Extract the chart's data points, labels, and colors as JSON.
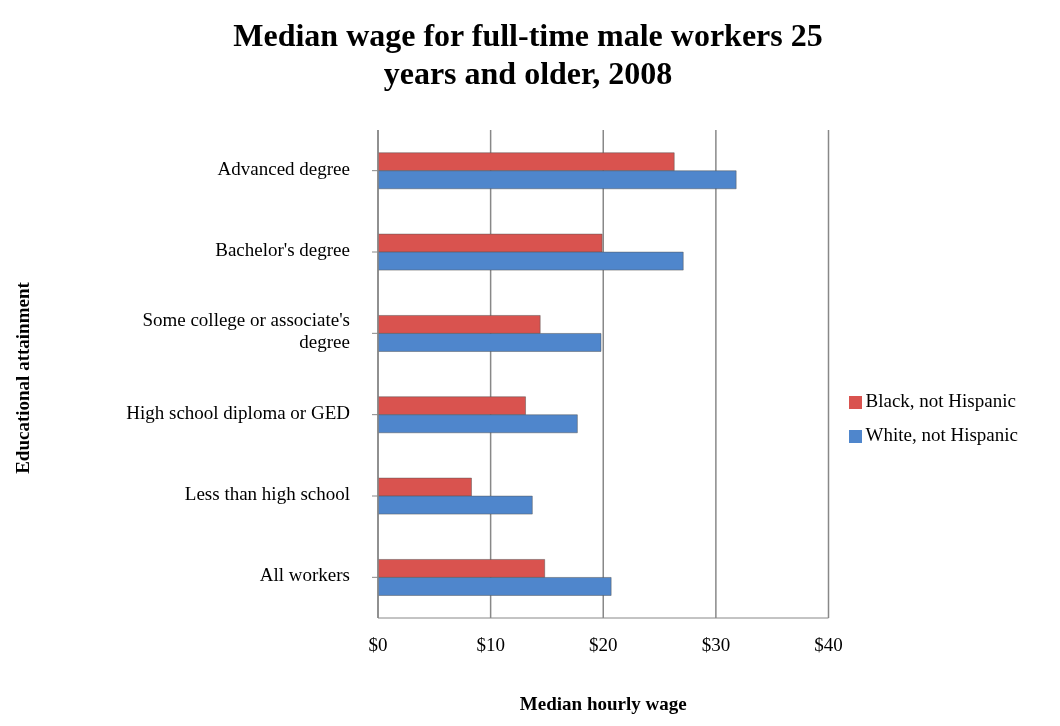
{
  "chart_data": {
    "type": "bar",
    "orientation": "horizontal",
    "title": "Median wage for full-time male workers 25 years and older, 2008",
    "xlabel": "Median hourly wage",
    "ylabel": "Educational attainment",
    "categories": [
      "Advanced degree",
      "Bachelor's degree",
      "Some college or associate's degree",
      "High school diploma or GED",
      "Less than high school",
      "All workers"
    ],
    "series": [
      {
        "name": "Black, not Hispanic",
        "color": "#d9534f",
        "values": [
          26.3,
          19.9,
          14.4,
          13.1,
          8.3,
          14.8
        ]
      },
      {
        "name": "White, not Hispanic",
        "color": "#4f86cc",
        "values": [
          31.8,
          27.1,
          19.8,
          17.7,
          13.7,
          20.7
        ]
      }
    ],
    "xlim": [
      0,
      40
    ],
    "xticks": [
      {
        "value": 0,
        "label": "$0"
      },
      {
        "value": 10,
        "label": "$10"
      },
      {
        "value": 20,
        "label": "$20"
      },
      {
        "value": 30,
        "label": "$30"
      },
      {
        "value": 40,
        "label": "$40"
      }
    ],
    "grid": "x",
    "legend": "right"
  }
}
